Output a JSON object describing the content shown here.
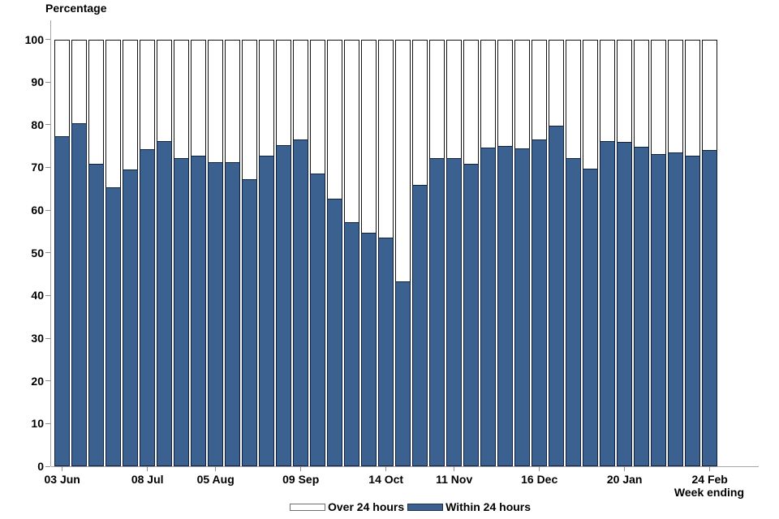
{
  "colors": {
    "within_24_hours_fill": "#3a6190",
    "over_24_hours_fill": "#ffffff",
    "bar_border": "#141414",
    "axis_line": "#a6a6a6",
    "tick_mark": "#8c8c8c",
    "text": "#000000",
    "background": "#ffffff"
  },
  "chart_data": {
    "type": "bar",
    "stacked": true,
    "title": "",
    "y_axis": {
      "title": "Percentage",
      "min": 0,
      "max": 100,
      "tick_step": 10,
      "tick_labels": [
        "0",
        "10",
        "20",
        "30",
        "40",
        "50",
        "60",
        "70",
        "80",
        "90",
        "100"
      ]
    },
    "x_axis": {
      "title": "Week ending",
      "bar_count": 39,
      "tick_labels": [
        "03 Jun",
        "08 Jul",
        "05 Aug",
        "09 Sep",
        "14 Oct",
        "11 Nov",
        "16 Dec",
        "20 Jan",
        "24 Feb"
      ],
      "tick_bar_indices": [
        0,
        5,
        9,
        14,
        19,
        23,
        28,
        33,
        38
      ]
    },
    "series": [
      {
        "name": "Over 24 hours",
        "color": "#ffffff",
        "values": [
          22.7,
          19.7,
          29.1,
          34.6,
          30.4,
          25.8,
          23.8,
          27.9,
          27.2,
          28.7,
          28.7,
          32.8,
          27.2,
          24.8,
          23.4,
          31.5,
          37.4,
          42.9,
          45.3,
          46.5,
          56.6,
          34.0,
          27.9,
          27.9,
          29.1,
          25.4,
          25.0,
          25.5,
          23.5,
          20.2,
          27.8,
          30.2,
          23.9,
          24.1,
          25.2,
          26.9,
          26.4,
          27.2,
          26.0
        ]
      },
      {
        "name": "Within 24 hours",
        "color": "#3a6190",
        "values": [
          77.3,
          80.3,
          70.9,
          65.4,
          69.6,
          74.2,
          76.2,
          72.1,
          72.8,
          71.3,
          71.3,
          67.2,
          72.8,
          75.2,
          76.6,
          68.5,
          62.6,
          57.1,
          54.7,
          53.5,
          43.4,
          66.0,
          72.1,
          72.1,
          70.9,
          74.6,
          75.0,
          74.5,
          76.5,
          79.8,
          72.2,
          69.8,
          76.1,
          75.9,
          74.8,
          73.1,
          73.6,
          72.8,
          74.0
        ]
      }
    ],
    "legend": {
      "position": "bottom-center",
      "entries": [
        "Over 24 hours",
        "Within 24 hours"
      ]
    },
    "grid": "off"
  }
}
